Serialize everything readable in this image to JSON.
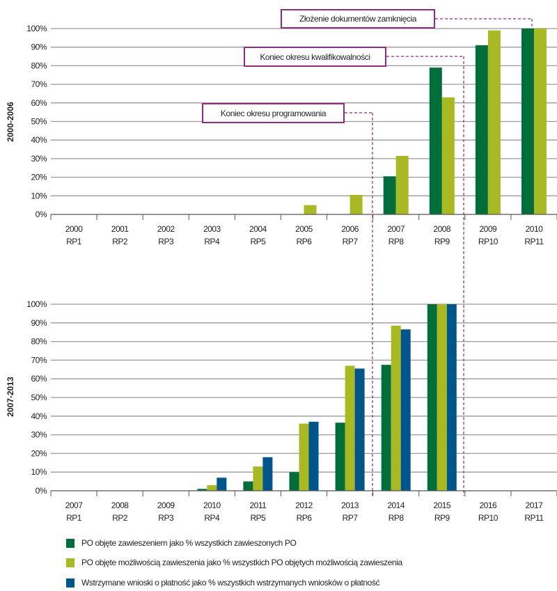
{
  "colors": {
    "dark_green": "#006d3b",
    "light_green": "#a8b924",
    "blue": "#00568a",
    "annotation": "#8e2a7f",
    "grid": "#9a9a9a"
  },
  "legend": [
    "PO objęte zawieszeniem jako % wszystkich zawieszonych PO",
    "PO objęte możliwością zawieszenia jako % wszystkich PO objętych możliwością zawieszenia",
    "Wstrzymane wnioski o płatność jako % wszystkich wstrzymanych wniosków o płatność"
  ],
  "annotations": {
    "closure": "Złożenie dokumentów zamknięcia",
    "eligibility_end": "Koniec okresu kwalifikowalności",
    "programming_end": "Koniec okresu programowania"
  },
  "chart_data": [
    {
      "type": "bar",
      "ylabel": "2000-2006",
      "ylim": [
        0,
        100
      ],
      "yticks": [
        "0%",
        "10%",
        "20%",
        "30%",
        "40%",
        "50%",
        "60%",
        "70%",
        "80%",
        "90%",
        "100%"
      ],
      "grid": true,
      "categories": [
        [
          "2000",
          "RP1"
        ],
        [
          "2001",
          "RP2"
        ],
        [
          "2002",
          "RP3"
        ],
        [
          "2003",
          "RP4"
        ],
        [
          "2004",
          "RP5"
        ],
        [
          "2005",
          "RP6"
        ],
        [
          "2006",
          "RP7"
        ],
        [
          "2007",
          "RP8"
        ],
        [
          "2008",
          "RP9"
        ],
        [
          "2009",
          "RP10"
        ],
        [
          "2010",
          "RP11"
        ]
      ],
      "series": [
        {
          "name": "PO objęte zawieszeniem jako % wszystkich zawieszonych PO",
          "color": "#006d3b",
          "values": [
            0,
            0,
            0,
            0,
            0,
            0,
            0,
            20.5,
            79,
            91,
            100
          ]
        },
        {
          "name": "PO objęte możliwością zawieszenia jako % wszystkich PO objętych możliwością zawieszenia",
          "color": "#a8b924",
          "values": [
            0,
            0,
            0,
            0,
            0,
            5,
            10.5,
            31.5,
            63,
            99,
            100
          ]
        }
      ]
    },
    {
      "type": "bar",
      "ylabel": "2007-2013",
      "ylim": [
        0,
        100
      ],
      "yticks": [
        "0%",
        "10%",
        "20%",
        "30%",
        "40%",
        "50%",
        "60%",
        "70%",
        "80%",
        "90%",
        "100%"
      ],
      "grid": true,
      "categories": [
        [
          "2007",
          "RP1"
        ],
        [
          "2008",
          "RP2"
        ],
        [
          "2009",
          "RP3"
        ],
        [
          "2010",
          "RP4"
        ],
        [
          "2011",
          "RP5"
        ],
        [
          "2012",
          "RP6"
        ],
        [
          "2013",
          "RP7"
        ],
        [
          "2014",
          "RP8"
        ],
        [
          "2015",
          "RP9"
        ],
        [
          "2016",
          "RP10"
        ],
        [
          "2017",
          "RP11"
        ]
      ],
      "series": [
        {
          "name": "PO objęte zawieszeniem jako % wszystkich zawieszonych PO",
          "color": "#006d3b",
          "values": [
            0,
            0,
            0,
            1,
            5,
            10,
            36.5,
            67.5,
            100,
            0,
            0
          ]
        },
        {
          "name": "PO objęte możliwością zawieszenia jako % wszystkich PO objętych możliwością zawieszenia",
          "color": "#a8b924",
          "values": [
            0,
            0,
            0,
            3,
            13,
            36,
            67,
            88.5,
            100,
            0,
            0
          ]
        },
        {
          "name": "Wstrzymane wnioski o płatność jako % wszystkich wstrzymanych wniosków o płatność",
          "color": "#00568a",
          "values": [
            0,
            0,
            0,
            7,
            18,
            37,
            65.5,
            86.5,
            100,
            0,
            0
          ]
        }
      ]
    }
  ]
}
